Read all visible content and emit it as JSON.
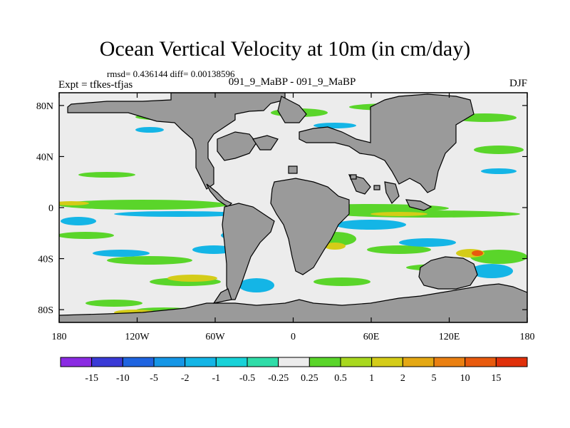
{
  "chart_data": {
    "type": "heatmap",
    "title": "Ocean Vertical Velocity at 10m (in cm/day)",
    "stat_line": "rmsd= 0.436144 diff= 0.00138596",
    "left_label": "Expt = tfkes-tfjas",
    "center_label": "091_9_MaBP - 091_9_MaBP",
    "right_label": "DJF",
    "x_ticks": [
      "180",
      "120W",
      "60W",
      "0",
      "60E",
      "120E",
      "180"
    ],
    "x_tick_values": [
      -180,
      -120,
      -60,
      0,
      60,
      120,
      180
    ],
    "y_ticks": [
      "80N",
      "40N",
      "0",
      "40S",
      "80S"
    ],
    "y_tick_values": [
      80,
      40,
      0,
      -40,
      -80
    ],
    "xlim": [
      -180,
      180
    ],
    "ylim": [
      -90,
      90
    ],
    "colorbar_labels": [
      "-15",
      "-10",
      "-5",
      "-2",
      "-1",
      "-0.5",
      "-0.25",
      "0.25",
      "0.5",
      "1",
      "2",
      "5",
      "10",
      "15"
    ],
    "colorbar_colors": [
      "#8a2be2",
      "#3a3ad6",
      "#1f64e0",
      "#1596e6",
      "#14b5e6",
      "#18d2d8",
      "#2fdca8",
      "#ececec",
      "#5ad52a",
      "#a8d81f",
      "#d4cc18",
      "#e4a814",
      "#ea8012",
      "#e85a0e",
      "#e0300a"
    ],
    "land_color": "#9a9a9a",
    "background_color": "#ececec"
  }
}
